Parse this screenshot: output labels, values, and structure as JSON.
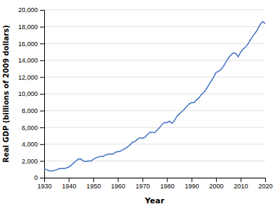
{
  "chart_data": {
    "type": "line",
    "x_label": "Year",
    "y_label": "Real GDP (billions of 2009 dollars)",
    "x": [
      1930,
      1931,
      1932,
      1933,
      1934,
      1935,
      1936,
      1937,
      1938,
      1939,
      1940,
      1941,
      1942,
      1943,
      1944,
      1945,
      1946,
      1947,
      1948,
      1949,
      1950,
      1951,
      1952,
      1953,
      1954,
      1955,
      1956,
      1957,
      1958,
      1959,
      1960,
      1961,
      1962,
      1963,
      1964,
      1965,
      1966,
      1967,
      1968,
      1969,
      1970,
      1971,
      1972,
      1973,
      1974,
      1975,
      1976,
      1977,
      1978,
      1979,
      1980,
      1981,
      1982,
      1983,
      1984,
      1985,
      1986,
      1987,
      1988,
      1989,
      1990,
      1991,
      1992,
      1993,
      1994,
      1995,
      1996,
      1997,
      1998,
      1999,
      2000,
      2001,
      2002,
      2003,
      2004,
      2005,
      2006,
      2007,
      2008,
      2009,
      2010,
      2011,
      2012,
      2013,
      2014,
      2015,
      2016,
      2017,
      2018,
      2019,
      2020
    ],
    "values": [
      1057,
      967,
      830,
      791,
      861,
      940,
      1060,
      1114,
      1077,
      1163,
      1267,
      1490,
      1772,
      2011,
      2239,
      2217,
      1973,
      1934,
      2012,
      1972,
      2184,
      2360,
      2456,
      2571,
      2524,
      2720,
      2795,
      2846,
      2797,
      3031,
      3108,
      3161,
      3343,
      3475,
      3690,
      3930,
      4218,
      4342,
      4587,
      4773,
      4712,
      4820,
      5134,
      5424,
      5397,
      5385,
      5676,
      5967,
      6363,
      6592,
      6571,
      6736,
      6491,
      6792,
      7285,
      7594,
      7861,
      8133,
      8475,
      8786,
      8955,
      8948,
      9266,
      9521,
      9905,
      10174,
      10561,
      11034,
      11525,
      11981,
      12560,
      12682,
      12909,
      13271,
      13774,
      14235,
      14613,
      14874,
      14830,
      14419,
      14964,
      15318,
      15592,
      15942,
      16422,
      16896,
      17270,
      17720,
      18295,
      18613,
      18385
    ],
    "color": "#4472c4",
    "xlim": [
      1930,
      2020
    ],
    "ylim": [
      0,
      20000
    ],
    "xticks": [
      1930,
      1940,
      1950,
      1960,
      1970,
      1980,
      1990,
      2000,
      2010,
      2020
    ],
    "yticks": [
      0,
      {
        "value": 2000,
        "label": "2,000"
      },
      {
        "value": 4000,
        "label": "4,000"
      },
      {
        "value": 6000,
        "label": "6,000"
      },
      {
        "value": 8000,
        "label": "8,000"
      },
      {
        "value": 10000,
        "label": "10,000"
      },
      {
        "value": 12000,
        "label": "12,000"
      },
      {
        "value": 14000,
        "label": "14,000"
      },
      {
        "value": 16000,
        "label": "16,000"
      },
      {
        "value": 18000,
        "label": "18,000"
      },
      {
        "value": 20000,
        "label": "20,000"
      }
    ],
    "grid": true
  }
}
